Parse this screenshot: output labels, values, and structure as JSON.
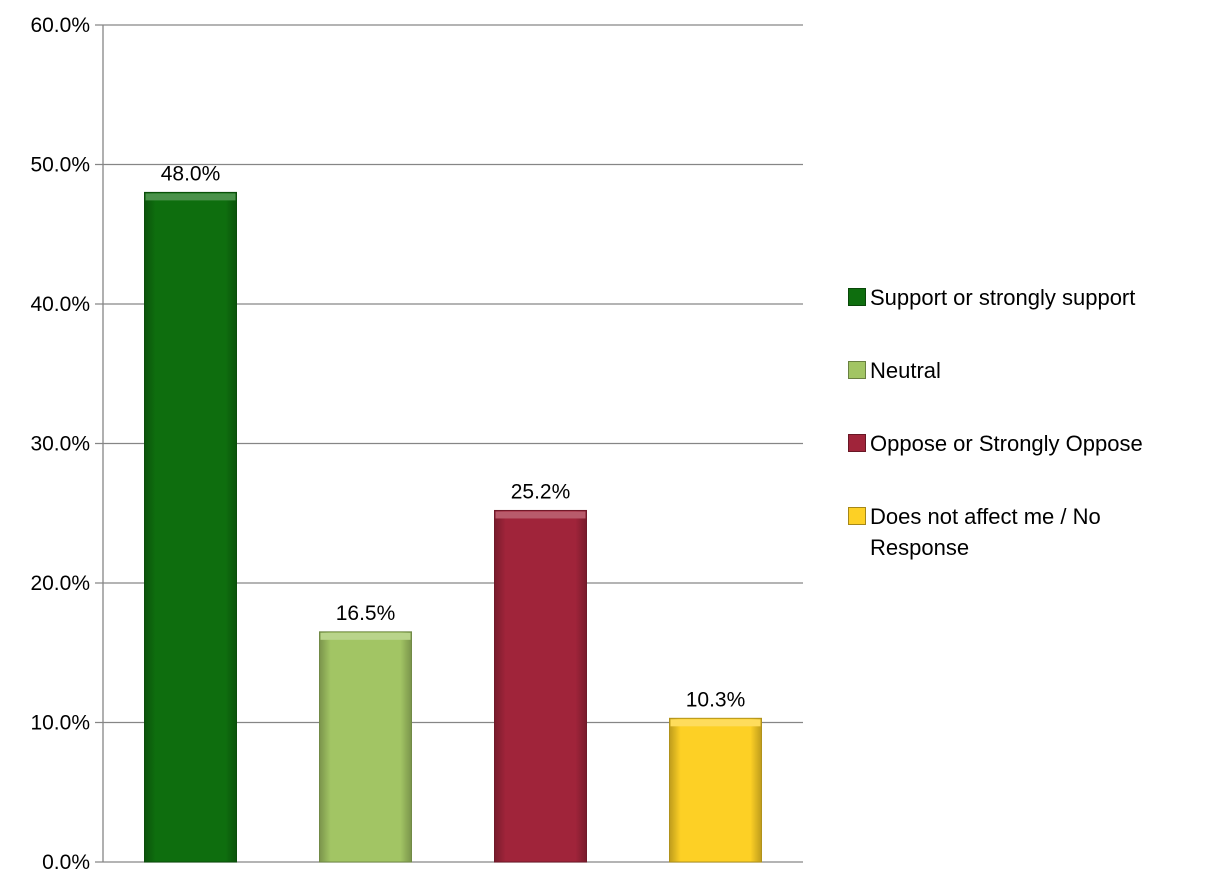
{
  "chart_data": {
    "type": "bar",
    "title": "",
    "xlabel": "",
    "ylabel": "",
    "ylim": [
      0,
      60
    ],
    "y_ticks": [
      "0.0%",
      "10.0%",
      "20.0%",
      "30.0%",
      "40.0%",
      "50.0%",
      "60.0%"
    ],
    "y_tick_values": [
      0,
      10,
      20,
      30,
      40,
      50,
      60
    ],
    "grid": true,
    "legend_placement": "right",
    "categories": [
      "Support or strongly support",
      "Neutral",
      "Oppose or Strongly Oppose",
      "Does not affect me / No Response"
    ],
    "values": [
      48.0,
      16.5,
      25.2,
      10.3
    ],
    "data_labels": [
      "48.0%",
      "16.5%",
      "25.2%",
      "10.3%"
    ],
    "colors": [
      "#0e6e0e",
      "#a2c564",
      "#a0243a",
      "#fdd025"
    ]
  }
}
